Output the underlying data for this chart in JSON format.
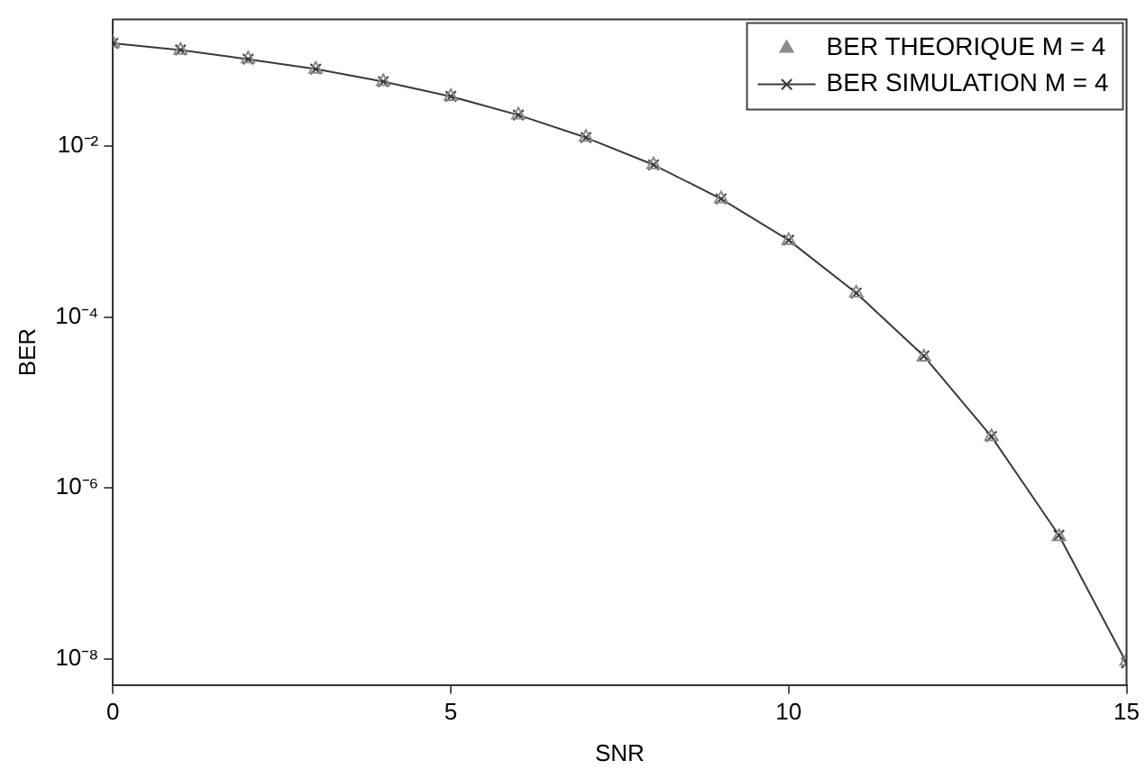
{
  "chart_data": {
    "type": "line",
    "xlabel": "SNR",
    "ylabel": "BER",
    "x": [
      0,
      1,
      2,
      3,
      4,
      5,
      6,
      7,
      8,
      9,
      10,
      11,
      12,
      13,
      14,
      15
    ],
    "series": [
      {
        "name": "BER THEORIQUE M = 4",
        "type": "scatter",
        "marker": "triangle",
        "color": "#8a8a8a",
        "values": [
          0.159,
          0.131,
          0.104,
          0.0789,
          0.0565,
          0.0377,
          0.023,
          0.0126,
          0.006,
          0.0024,
          0.00078,
          0.00019,
          3.4e-05,
          4e-06,
          2.7e-07,
          9.4e-09
        ]
      },
      {
        "name": "BER SIMULATION M = 4",
        "type": "line",
        "marker": "cross",
        "line_style": "solid",
        "color": "#3a3a3a",
        "values": [
          0.158,
          0.132,
          0.103,
          0.079,
          0.0563,
          0.0378,
          0.0229,
          0.0125,
          0.006,
          0.0024,
          0.00079,
          0.00019,
          3.5e-05,
          4e-06,
          2.8e-07,
          9e-09
        ]
      }
    ],
    "xlim": [
      0,
      15
    ],
    "xticks": [
      0,
      5,
      10,
      15
    ],
    "ylim": [
      5e-09,
      0.3
    ],
    "log": "y",
    "yticks": [
      {
        "value": 0.01,
        "label": "10⁻²"
      },
      {
        "value": 0.0001,
        "label": "10⁻⁴"
      },
      {
        "value": 1e-06,
        "label": "10⁻⁶"
      },
      {
        "value": 1e-08,
        "label": "10⁻⁸"
      }
    ],
    "grid": false,
    "legend": "top right"
  }
}
